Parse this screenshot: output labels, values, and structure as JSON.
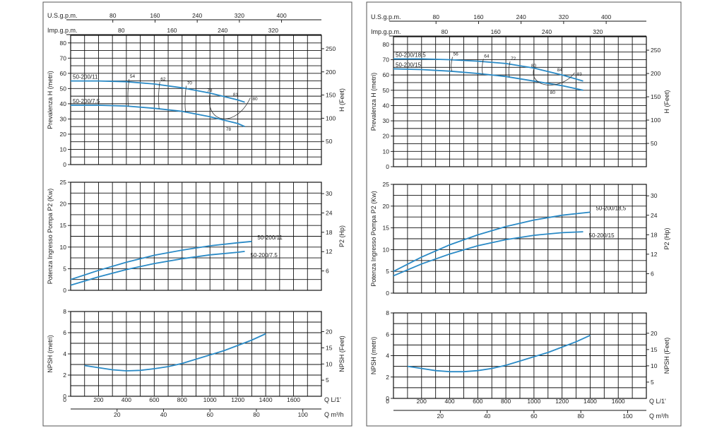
{
  "chart_data": [
    {
      "panel": "left",
      "top_axes": {
        "usgpm": {
          "label": "U.S.g.p.m.",
          "ticks": [
            "80",
            "160",
            "240",
            "320",
            "400"
          ]
        },
        "impgpm": {
          "label": "Imp.g.p.m.",
          "ticks": [
            "80",
            "160",
            "240",
            "320"
          ]
        }
      },
      "bottom_axes": {
        "lpm": {
          "label": "Q  L/1'",
          "ticks": [
            "200",
            "400",
            "600",
            "800",
            "1000",
            "1200",
            "1400",
            "1600"
          ]
        },
        "m3h": {
          "label": "Q  m³/h",
          "ticks": [
            "20",
            "40",
            "60",
            "80",
            "100"
          ]
        }
      },
      "x_range_lpm": [
        0,
        1800
      ],
      "head": {
        "type": "line",
        "ylabel": "Prevalenza H (metri)",
        "y2label": "H (Feet)",
        "yticks": [
          "0",
          "10",
          "20",
          "30",
          "40",
          "50",
          "60",
          "70",
          "80"
        ],
        "y2ticks": [
          "50",
          "100",
          "150",
          "200",
          "250"
        ],
        "ylim": [
          0,
          85
        ],
        "series": [
          {
            "name": "50-200/11",
            "x": [
              0,
              200,
              400,
              600,
              800,
              1000,
              1200,
              1250
            ],
            "y": [
              55,
              55,
              54.5,
              53,
              50.5,
              47,
              42.5,
              41
            ]
          },
          {
            "name": "50-200/7.5",
            "x": [
              0,
              200,
              400,
              600,
              800,
              1000,
              1200,
              1250
            ],
            "y": [
              39,
              39,
              38.5,
              37,
              35,
              31.5,
              27,
              25
            ]
          }
        ],
        "efficiency_labels": [
          "54",
          "62",
          "70",
          "78",
          "81",
          "80",
          "78"
        ]
      },
      "power": {
        "type": "line",
        "ylabel": "Potenza Ingresso Pompa P2 (Kw)",
        "y2label": "P2 (Hp)",
        "yticks": [
          "0",
          "5",
          "10",
          "15",
          "20",
          "25"
        ],
        "y2ticks": [
          "6",
          "12",
          "18",
          "24",
          "30"
        ],
        "ylim": [
          0,
          25
        ],
        "series": [
          {
            "name": "50-200/11",
            "x": [
              0,
              200,
              400,
              600,
              800,
              1000,
              1200,
              1300
            ],
            "y": [
              2.5,
              4.6,
              6.5,
              8.1,
              9.3,
              10.3,
              11.0,
              11.3
            ]
          },
          {
            "name": "50-200/7.5",
            "x": [
              0,
              200,
              400,
              600,
              800,
              1000,
              1200,
              1250
            ],
            "y": [
              1.2,
              3.1,
              4.8,
              6.2,
              7.3,
              8.2,
              8.8,
              9.0
            ]
          }
        ]
      },
      "npsh": {
        "type": "line",
        "ylabel": "NPSH (metri)",
        "y2label": "NPSH (Feet)",
        "yticks": [
          "0",
          "2",
          "4",
          "6",
          "8"
        ],
        "y2ticks": [
          "5",
          "10",
          "15",
          "20"
        ],
        "ylim": [
          0,
          8
        ],
        "series": [
          {
            "x": [
              100,
              200,
              300,
              400,
              500,
              600,
              700,
              800,
              900,
              1000,
              1100,
              1200,
              1300,
              1400
            ],
            "y": [
              2.9,
              2.7,
              2.5,
              2.4,
              2.45,
              2.6,
              2.8,
              3.1,
              3.5,
              3.9,
              4.3,
              4.8,
              5.3,
              5.9
            ]
          }
        ]
      }
    },
    {
      "panel": "right",
      "top_axes": {
        "usgpm": {
          "label": "U.S.g.p.m.",
          "ticks": [
            "80",
            "160",
            "240",
            "320",
            "400"
          ]
        },
        "impgpm": {
          "label": "Imp.g.p.m.",
          "ticks": [
            "80",
            "160",
            "240",
            "320"
          ]
        }
      },
      "bottom_axes": {
        "lpm": {
          "label": "Q  L/1'",
          "ticks": [
            "200",
            "400",
            "600",
            "800",
            "1000",
            "1200",
            "1400",
            "1600"
          ]
        },
        "m3h": {
          "label": "Q  m³/h",
          "ticks": [
            "20",
            "40",
            "60",
            "80",
            "100"
          ]
        }
      },
      "x_range_lpm": [
        0,
        1800
      ],
      "head": {
        "type": "line",
        "ylabel": "Prevalenza H (metri)",
        "y2label": "H (Feet)",
        "yticks": [
          "0",
          "10",
          "20",
          "30",
          "40",
          "50",
          "60",
          "70",
          "80"
        ],
        "y2ticks": [
          "50",
          "100",
          "150",
          "200",
          "250"
        ],
        "ylim": [
          0,
          85
        ],
        "series": [
          {
            "name": "50-200/18,5",
            "x": [
              0,
              200,
              400,
              600,
              800,
              1000,
              1200,
              1350
            ],
            "y": [
              70.5,
              70.5,
              70,
              69,
              67.5,
              64.5,
              60,
              56
            ]
          },
          {
            "name": "50-200/15",
            "x": [
              0,
              200,
              400,
              600,
              800,
              1000,
              1200,
              1350
            ],
            "y": [
              64,
              63.5,
              62.5,
              61,
              59,
              56,
              53,
              50
            ]
          }
        ],
        "efficiency_labels": [
          "56",
          "64",
          "72",
          "80",
          "84",
          "83",
          "80"
        ]
      },
      "power": {
        "type": "line",
        "ylabel": "Potenza Ingresso Pompa P2 (Kw)",
        "y2label": "P2 (Hp)",
        "yticks": [
          "0",
          "5",
          "10",
          "15",
          "20",
          "25"
        ],
        "y2ticks": [
          "6",
          "12",
          "18",
          "24",
          "30"
        ],
        "ylim": [
          0,
          25
        ],
        "series": [
          {
            "name": "50-200/18,5",
            "x": [
              0,
              200,
              400,
              600,
              800,
              1000,
              1200,
              1400
            ],
            "y": [
              5.0,
              8.3,
              11.1,
              13.4,
              15.3,
              16.8,
              17.9,
              18.6
            ]
          },
          {
            "name": "50-200/15",
            "x": [
              0,
              200,
              400,
              600,
              800,
              1000,
              1200,
              1350
            ],
            "y": [
              4.0,
              6.7,
              9.0,
              10.9,
              12.3,
              13.3,
              13.9,
              14.1
            ]
          }
        ]
      },
      "npsh": {
        "type": "line",
        "ylabel": "NPSH (metri)",
        "y2label": "NPSH (Feet)",
        "yticks": [
          "0",
          "2",
          "4",
          "6",
          "8"
        ],
        "y2ticks": [
          "5",
          "10",
          "15",
          "20"
        ],
        "ylim": [
          0,
          8
        ],
        "series": [
          {
            "x": [
              100,
              200,
              300,
              400,
              500,
              600,
              700,
              800,
              900,
              1000,
              1100,
              1200,
              1300,
              1400
            ],
            "y": [
              3.0,
              2.8,
              2.6,
              2.5,
              2.5,
              2.6,
              2.8,
              3.1,
              3.5,
              3.9,
              4.3,
              4.8,
              5.3,
              5.9
            ]
          }
        ]
      }
    }
  ]
}
